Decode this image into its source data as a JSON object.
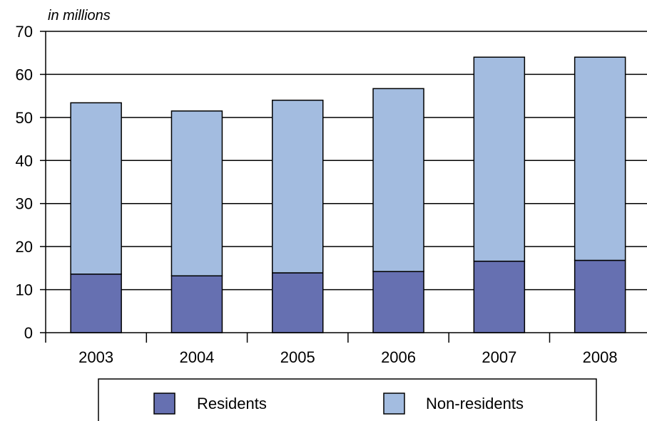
{
  "chart_data": {
    "type": "bar",
    "stacked": true,
    "unit_label": "in millions",
    "categories": [
      "2003",
      "2004",
      "2005",
      "2006",
      "2007",
      "2008"
    ],
    "series": [
      {
        "name": "Residents",
        "color": "#6670b1",
        "values": [
          13.6,
          13.2,
          13.9,
          14.2,
          16.6,
          16.8
        ]
      },
      {
        "name": "Non-residents",
        "color": "#a3bce0",
        "values": [
          39.8,
          38.3,
          40.1,
          42.5,
          47.4,
          47.2
        ]
      }
    ],
    "ylim": [
      0,
      70
    ],
    "yticks": [
      0,
      10,
      20,
      30,
      40,
      50,
      60,
      70
    ],
    "grid": true,
    "legend_position": "bottom"
  }
}
